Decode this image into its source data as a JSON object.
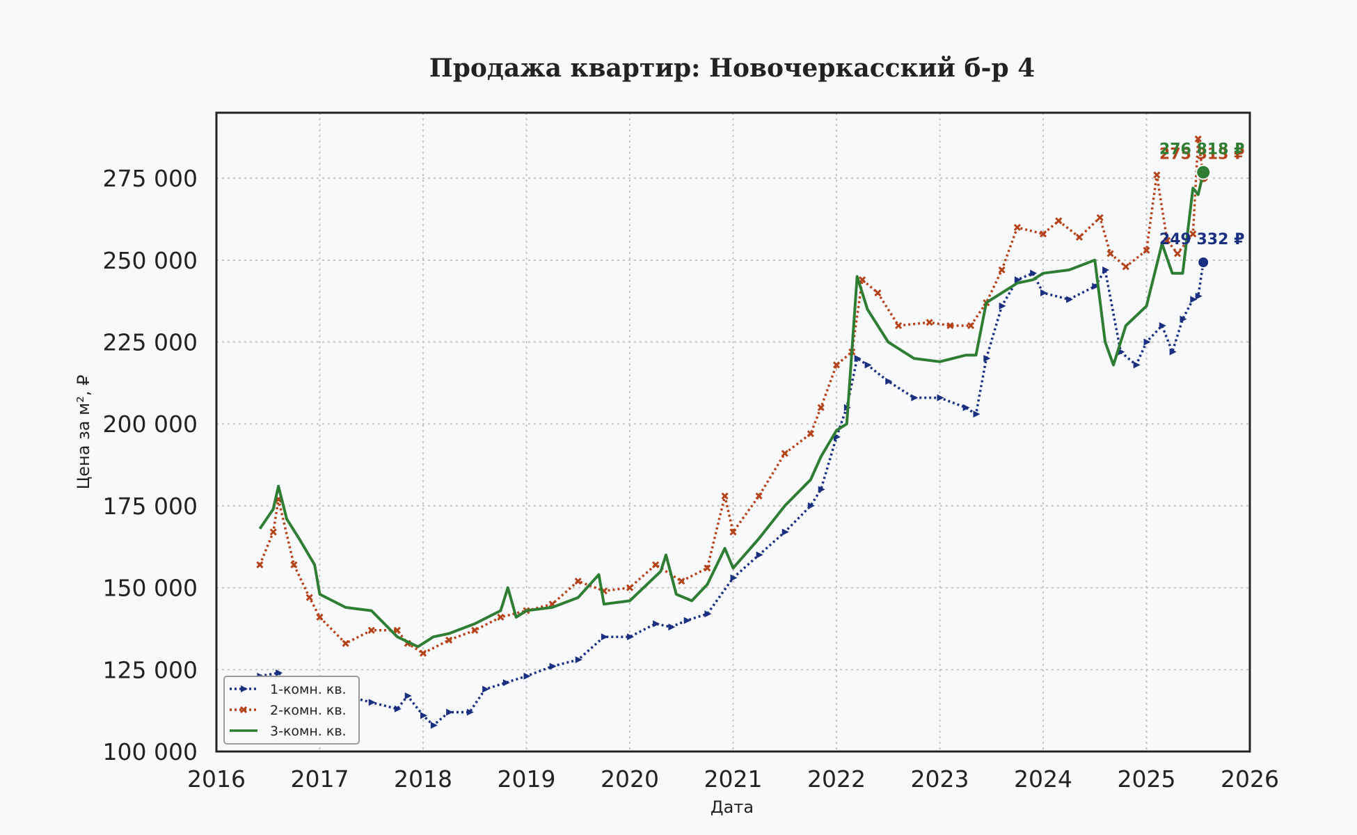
{
  "chart_data": {
    "type": "line",
    "title": "Продажа квартир: Новочеркасский б-р 4",
    "xlabel": "Дата",
    "ylabel": "Цена за м², ₽",
    "xlim": [
      2016,
      2026
    ],
    "ylim": [
      100000,
      295000
    ],
    "x_ticks": [
      2016,
      2017,
      2018,
      2019,
      2020,
      2021,
      2022,
      2023,
      2024,
      2025,
      2026
    ],
    "x_tick_labels": [
      "2016",
      "2017",
      "2018",
      "2019",
      "2020",
      "2021",
      "2022",
      "2023",
      "2024",
      "2025",
      "2026"
    ],
    "y_ticks": [
      100000,
      125000,
      150000,
      175000,
      200000,
      225000,
      250000,
      275000
    ],
    "y_tick_labels": [
      "100 000",
      "125 000",
      "150 000",
      "175 000",
      "200 000",
      "225 000",
      "250 000",
      "275 000"
    ],
    "grid": true,
    "legend_position": "bottom-left",
    "series": [
      {
        "name": "1-комн. кв.",
        "color": "#1a2f80",
        "style": "dotted-triangle",
        "x": [
          2016.42,
          2016.6,
          2016.75,
          2017.0,
          2017.25,
          2017.5,
          2017.75,
          2017.85,
          2018.0,
          2018.1,
          2018.25,
          2018.45,
          2018.6,
          2018.8,
          2019.0,
          2019.25,
          2019.5,
          2019.75,
          2020.0,
          2020.25,
          2020.4,
          2020.55,
          2020.75,
          2021.0,
          2021.25,
          2021.5,
          2021.75,
          2021.85,
          2022.0,
          2022.1,
          2022.2,
          2022.3,
          2022.5,
          2022.75,
          2023.0,
          2023.25,
          2023.35,
          2023.45,
          2023.6,
          2023.75,
          2023.9,
          2024.0,
          2024.25,
          2024.5,
          2024.6,
          2024.75,
          2024.9,
          2025.0,
          2025.15,
          2025.25,
          2025.35,
          2025.45,
          2025.5,
          2025.55
        ],
        "values": [
          123000,
          124000,
          120000,
          118000,
          117000,
          115000,
          113000,
          117000,
          111000,
          108000,
          112000,
          112000,
          119000,
          121000,
          123000,
          126000,
          128000,
          135000,
          135000,
          139000,
          138000,
          140000,
          142000,
          153000,
          160000,
          167000,
          175000,
          180000,
          196000,
          205000,
          220000,
          218000,
          213000,
          208000,
          208000,
          205000,
          203000,
          220000,
          236000,
          244000,
          246000,
          240000,
          238000,
          242000,
          247000,
          222000,
          218000,
          225000,
          230000,
          222000,
          232000,
          238000,
          239000,
          249332
        ]
      },
      {
        "name": "2-комн. кв.",
        "color": "#b5431a",
        "style": "dotted-x",
        "x": [
          2016.42,
          2016.55,
          2016.6,
          2016.75,
          2016.9,
          2017.0,
          2017.25,
          2017.5,
          2017.75,
          2017.85,
          2018.0,
          2018.25,
          2018.5,
          2018.75,
          2019.0,
          2019.25,
          2019.5,
          2019.75,
          2020.0,
          2020.25,
          2020.5,
          2020.75,
          2020.92,
          2021.0,
          2021.25,
          2021.5,
          2021.75,
          2021.85,
          2022.0,
          2022.15,
          2022.25,
          2022.4,
          2022.6,
          2022.9,
          2023.1,
          2023.3,
          2023.45,
          2023.6,
          2023.75,
          2024.0,
          2024.15,
          2024.35,
          2024.55,
          2024.65,
          2024.8,
          2025.0,
          2025.1,
          2025.2,
          2025.3,
          2025.45,
          2025.5,
          2025.55
        ],
        "values": [
          157000,
          167000,
          177000,
          157000,
          147000,
          141000,
          133000,
          137000,
          137000,
          133000,
          130000,
          134000,
          137000,
          141000,
          143000,
          145000,
          152000,
          149000,
          150000,
          157000,
          152000,
          156000,
          178000,
          167000,
          178000,
          191000,
          197000,
          205000,
          218000,
          222000,
          244000,
          240000,
          230000,
          231000,
          230000,
          230000,
          237000,
          247000,
          260000,
          258000,
          262000,
          257000,
          263000,
          252000,
          248000,
          253000,
          276000,
          256000,
          252000,
          258000,
          287000,
          275313
        ]
      },
      {
        "name": "3-комн. кв.",
        "color": "#2e7d32",
        "style": "solid",
        "x": [
          2016.42,
          2016.55,
          2016.6,
          2016.68,
          2016.8,
          2016.95,
          2017.0,
          2017.25,
          2017.5,
          2017.75,
          2017.95,
          2018.1,
          2018.25,
          2018.5,
          2018.75,
          2018.82,
          2018.9,
          2019.0,
          2019.25,
          2019.5,
          2019.7,
          2019.75,
          2020.0,
          2020.3,
          2020.35,
          2020.45,
          2020.6,
          2020.75,
          2020.92,
          2021.0,
          2021.25,
          2021.5,
          2021.75,
          2021.85,
          2022.0,
          2022.1,
          2022.2,
          2022.3,
          2022.5,
          2022.75,
          2023.0,
          2023.25,
          2023.35,
          2023.45,
          2023.6,
          2023.75,
          2023.9,
          2024.0,
          2024.25,
          2024.5,
          2024.6,
          2024.68,
          2024.8,
          2025.0,
          2025.15,
          2025.25,
          2025.35,
          2025.45,
          2025.5,
          2025.55
        ],
        "values": [
          168000,
          174000,
          181000,
          171000,
          165000,
          157000,
          148000,
          144000,
          143000,
          135000,
          132000,
          135000,
          136000,
          139000,
          143000,
          150000,
          141000,
          143000,
          144000,
          147000,
          154000,
          145000,
          146000,
          155000,
          160000,
          148000,
          146000,
          151000,
          162000,
          156000,
          165000,
          175000,
          183000,
          190000,
          198000,
          200000,
          245000,
          235000,
          225000,
          220000,
          219000,
          221000,
          221000,
          237000,
          240000,
          243000,
          244000,
          246000,
          247000,
          250000,
          225000,
          218000,
          230000,
          236000,
          255000,
          246000,
          246000,
          272000,
          270000,
          276818
        ]
      }
    ],
    "end_labels": [
      "249 332 ₽",
      "275 313 ₽",
      "276 818 ₽"
    ]
  }
}
